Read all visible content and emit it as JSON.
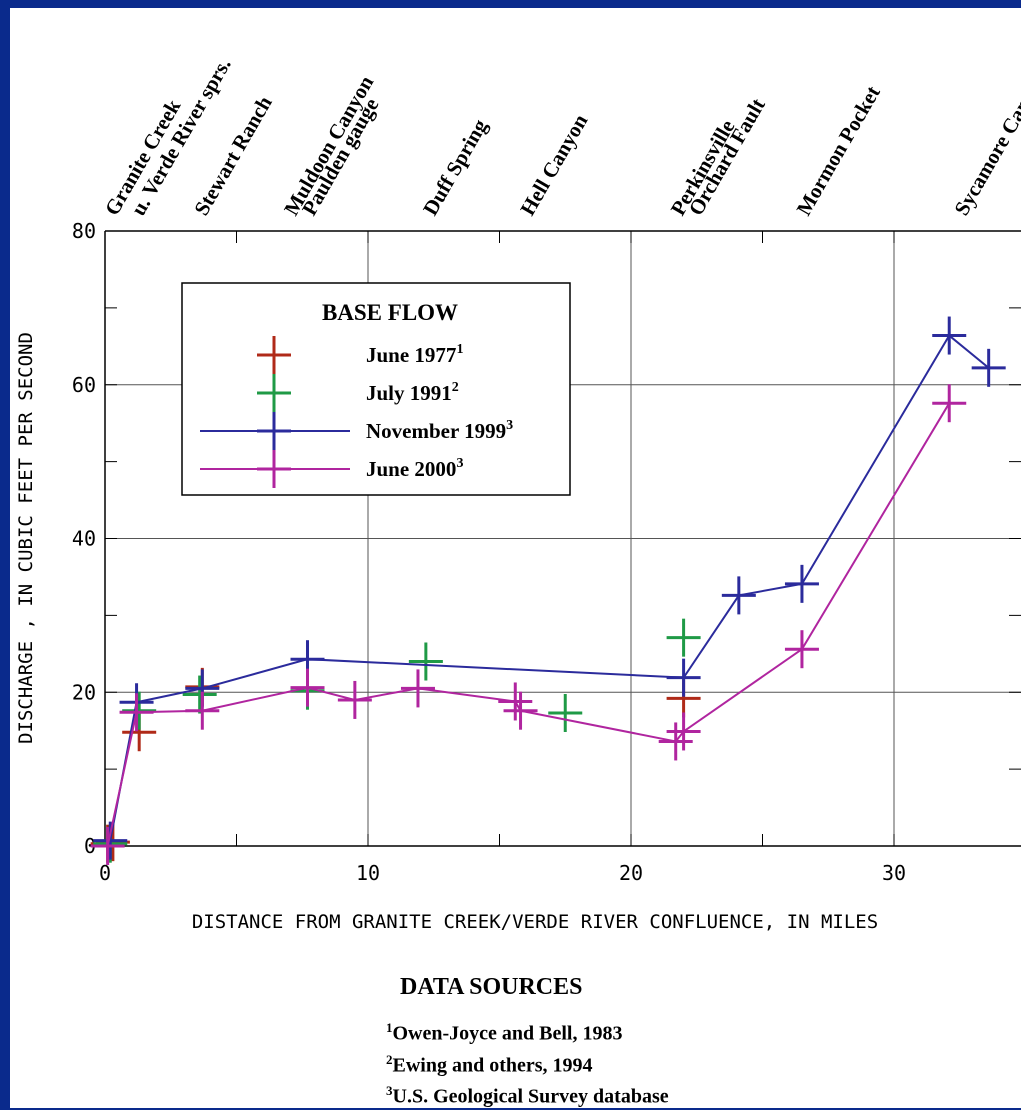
{
  "chart_data": {
    "type": "line",
    "xlabel": "DISTANCE FROM GRANITE CREEK/VERDE RIVER CONFLUENCE, IN MILES",
    "ylabel": "DISCHARGE , IN CUBIC FEET PER SECOND",
    "xlim": [
      0,
      35
    ],
    "ylim": [
      0,
      80
    ],
    "x_ticks": [
      "0",
      "10",
      "20",
      "30"
    ],
    "y_ticks": [
      "0",
      "20",
      "40",
      "60",
      "80"
    ],
    "grid": true,
    "legend_placement": "upper-left",
    "legend_title": "BASE FLOW",
    "locations": [
      {
        "label": [
          "Granite Creek"
        ],
        "x": 0.2
      },
      {
        "label": [
          "u. Verde River sprs."
        ],
        "x": 1.2
      },
      {
        "label": [
          "Stewart Ranch"
        ],
        "x": 3.6
      },
      {
        "label": [
          "Muldoon Canyon",
          "Paulden gauge"
        ],
        "x": 7.7
      },
      {
        "label": [
          "Duff Spring"
        ],
        "x": 12.3
      },
      {
        "label": [
          "Hell Canyon"
        ],
        "x": 16.0
      },
      {
        "label": [
          "Perkinsville",
          "Orchard Fault"
        ],
        "x": 22.4
      },
      {
        "label": [
          "Mormon Pocket"
        ],
        "x": 26.5
      },
      {
        "label": [
          "Sycamore Canyon"
        ],
        "x": 32.5
      }
    ],
    "series": [
      {
        "name": "June 1977",
        "sup": "1",
        "color": "#b02a18",
        "connected": false,
        "x": [
          0.1,
          0.3,
          1.3,
          3.7,
          22.0
        ],
        "y": [
          0.3,
          0.5,
          14.8,
          20.7,
          19.2
        ]
      },
      {
        "name": "July 1991",
        "sup": "2",
        "color": "#1f9a46",
        "connected": false,
        "x": [
          0.2,
          1.3,
          3.6,
          7.7,
          12.2,
          17.5,
          22.0
        ],
        "y": [
          0.3,
          17.6,
          19.7,
          20.2,
          24.0,
          17.3,
          27.1
        ]
      },
      {
        "name": "November 1999",
        "sup": "3",
        "color": "#2b2b9c",
        "connected": true,
        "x": [
          0.2,
          1.2,
          3.7,
          7.7,
          22.0,
          24.1,
          26.5,
          32.1,
          33.6
        ],
        "y": [
          0.7,
          18.7,
          20.5,
          24.3,
          21.9,
          32.6,
          34.1,
          66.4,
          62.2
        ]
      },
      {
        "name": "June 2000",
        "sup": "3",
        "color": "#b0259f",
        "connected": true,
        "x": [
          0.1,
          1.2,
          3.7,
          7.7,
          9.5,
          11.9,
          15.6,
          15.8,
          21.7,
          22.0,
          26.5,
          32.1
        ],
        "y": [
          0.0,
          17.4,
          17.6,
          20.6,
          19.0,
          20.5,
          18.8,
          17.6,
          13.6,
          14.9,
          25.6,
          57.6
        ]
      }
    ]
  },
  "data_sources": {
    "title": "DATA SOURCES",
    "items": [
      {
        "sup": "1",
        "text": "Owen-Joyce and Bell, 1983"
      },
      {
        "sup": "2",
        "text": "Ewing and others, 1994"
      },
      {
        "sup": "3",
        "text": "U.S. Geological Survey database"
      }
    ]
  }
}
